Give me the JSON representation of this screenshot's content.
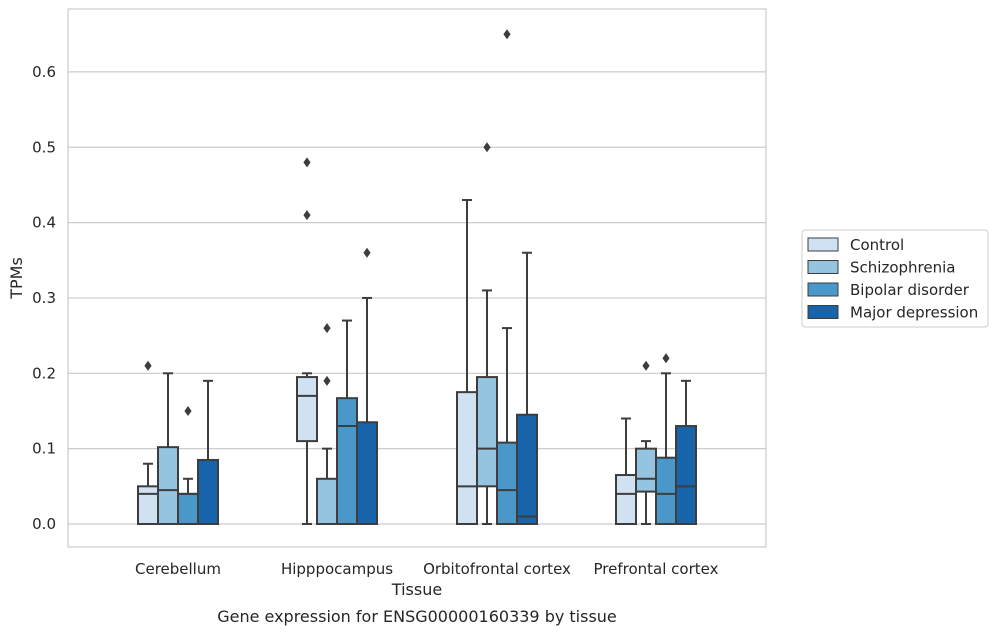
{
  "chart_data": {
    "type": "boxplot",
    "caption": "Gene expression for ENSG00000160339 by tissue",
    "xlabel": "Tissue",
    "ylabel": "TPMs",
    "ylim": [
      -0.03,
      0.685
    ],
    "yticks": [
      "0.0",
      "0.1",
      "0.2",
      "0.3",
      "0.4",
      "0.5",
      "0.6"
    ],
    "grid": true,
    "legend_position": "right",
    "categories": [
      "Cerebellum",
      "Hipppocampus",
      "Orbitofrontal cortex",
      "Prefrontal cortex"
    ],
    "series": [
      {
        "name": "Control",
        "color": "#d0e1f2",
        "boxes": [
          {
            "min": 0.0,
            "q1": 0.0,
            "median": 0.04,
            "q3": 0.05,
            "max": 0.08,
            "outliers": [
              0.21
            ]
          },
          {
            "min": 0.0,
            "q1": 0.11,
            "median": 0.17,
            "q3": 0.195,
            "max": 0.2,
            "outliers": [
              0.48,
              0.41
            ]
          },
          {
            "min": 0.0,
            "q1": 0.0,
            "median": 0.05,
            "q3": 0.175,
            "max": 0.43,
            "outliers": []
          },
          {
            "min": 0.0,
            "q1": 0.0,
            "median": 0.04,
            "q3": 0.065,
            "max": 0.14,
            "outliers": []
          }
        ]
      },
      {
        "name": "Schizophrenia",
        "color": "#94c4df",
        "boxes": [
          {
            "min": 0.0,
            "q1": 0.0,
            "median": 0.045,
            "q3": 0.102,
            "max": 0.2,
            "outliers": []
          },
          {
            "min": 0.0,
            "q1": 0.0,
            "median": 0.0,
            "q3": 0.06,
            "max": 0.1,
            "outliers": [
              0.26,
              0.19
            ]
          },
          {
            "min": 0.0,
            "q1": 0.05,
            "median": 0.1,
            "q3": 0.195,
            "max": 0.31,
            "outliers": [
              0.5
            ]
          },
          {
            "min": 0.0,
            "q1": 0.043,
            "median": 0.06,
            "q3": 0.1,
            "max": 0.11,
            "outliers": [
              0.21
            ]
          }
        ]
      },
      {
        "name": "Bipolar disorder",
        "color": "#4a98c9",
        "boxes": [
          {
            "min": 0.0,
            "q1": 0.0,
            "median": 0.04,
            "q3": 0.04,
            "max": 0.06,
            "outliers": [
              0.15
            ]
          },
          {
            "min": 0.0,
            "q1": 0.0,
            "median": 0.13,
            "q3": 0.167,
            "max": 0.27,
            "outliers": []
          },
          {
            "min": 0.0,
            "q1": 0.0,
            "median": 0.045,
            "q3": 0.108,
            "max": 0.26,
            "outliers": [
              0.65
            ]
          },
          {
            "min": 0.0,
            "q1": 0.0,
            "median": 0.04,
            "q3": 0.088,
            "max": 0.2,
            "outliers": [
              0.22
            ]
          }
        ]
      },
      {
        "name": "Major depression",
        "color": "#1764ab",
        "boxes": [
          {
            "min": 0.0,
            "q1": 0.0,
            "median": 0.0,
            "q3": 0.085,
            "max": 0.19,
            "outliers": []
          },
          {
            "min": 0.0,
            "q1": 0.0,
            "median": 0.0,
            "q3": 0.135,
            "max": 0.3,
            "outliers": [
              0.36
            ]
          },
          {
            "min": 0.0,
            "q1": 0.0,
            "median": 0.01,
            "q3": 0.145,
            "max": 0.36,
            "outliers": []
          },
          {
            "min": 0.0,
            "q1": 0.0,
            "median": 0.05,
            "q3": 0.13,
            "max": 0.19,
            "outliers": []
          }
        ]
      }
    ],
    "colors": {
      "grid": "#cccccc",
      "frame": "#cccccc",
      "line": "#3d3d3d",
      "text": "#262626"
    }
  }
}
